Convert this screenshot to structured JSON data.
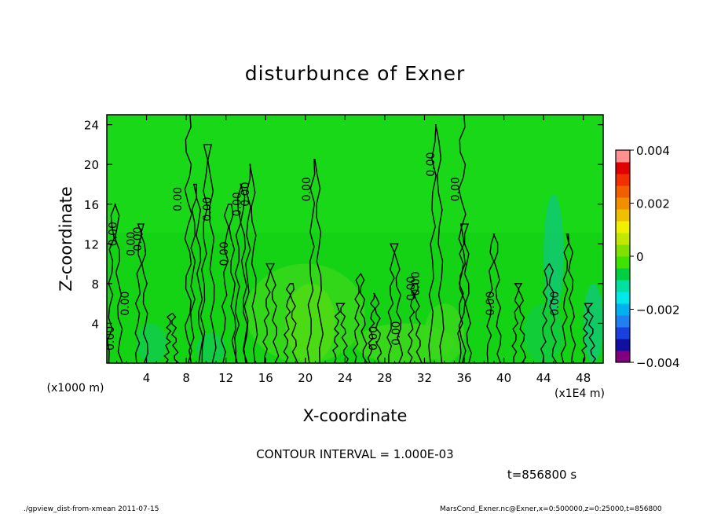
{
  "chart_data": {
    "type": "heatmap",
    "title": "disturbunce of Exner",
    "xlabel": "X-coordinate",
    "ylabel": "Z-coordinate",
    "x_unit_label": "(x1E4 m)",
    "y_unit_label": "(x1000 m)",
    "x_ticks": [
      4,
      8,
      12,
      16,
      20,
      24,
      28,
      32,
      36,
      40,
      44,
      48
    ],
    "y_ticks": [
      4,
      8,
      12,
      16,
      20,
      24
    ],
    "xlim": [
      0,
      50
    ],
    "ylim": [
      0,
      25
    ],
    "contour_interval_text": "CONTOUR INTERVAL = 1.000E-03",
    "time_text": "t=856800 s",
    "colorbar": {
      "range": [
        -0.004,
        0.004
      ],
      "tick_labels": [
        "0.004",
        "0.002",
        "0",
        "−0.002",
        "−0.004"
      ],
      "tick_values": [
        0.004,
        0.002,
        0,
        -0.002,
        -0.004
      ],
      "colors": [
        "#800080",
        "#1010a0",
        "#1a40e0",
        "#2080f0",
        "#00b0f0",
        "#00e8e8",
        "#00e0a0",
        "#00d040",
        "#40e000",
        "#80e000",
        "#c0e800",
        "#f0f000",
        "#f0c000",
        "#f09000",
        "#f06000",
        "#f03000",
        "#e00000",
        "#ff9090"
      ]
    },
    "contour_labels": [
      "0.00",
      "0.00",
      "0.00",
      "0.00",
      "0.00",
      "0.00",
      "0.00",
      "0.00",
      "0.00",
      "0.00",
      "0.00",
      "0.00",
      "0.00",
      "0.00",
      "0.00",
      "0.00",
      "0.00",
      "0.00",
      "0.00"
    ]
  },
  "footer": {
    "left": "./gpview_dist-from-xmean   2011-07-15",
    "right": "MarsCond_Exner.nc@Exner,x=0:500000,z=0:25000,t=856800"
  }
}
